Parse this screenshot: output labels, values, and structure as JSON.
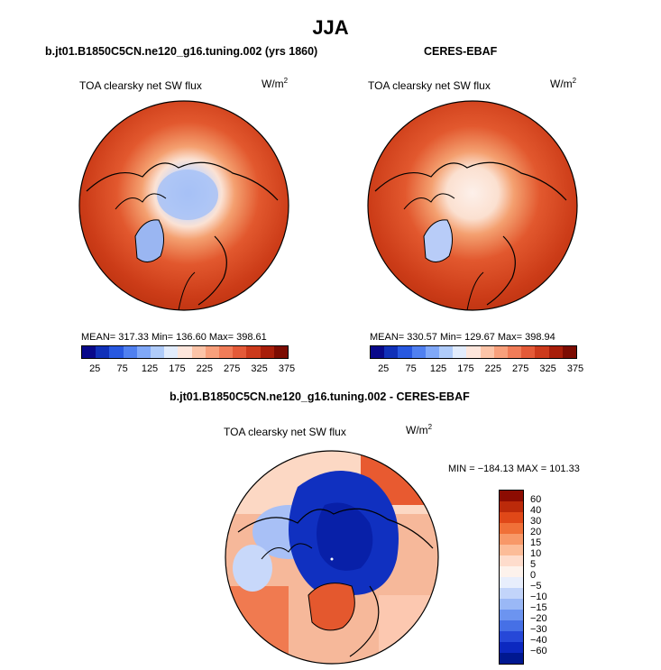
{
  "main_title": "JJA",
  "top_left": {
    "title": "b.jt01.B1850C5CN.ne120_g16.tuning.002 (yrs 1860)",
    "variable": "TOA clearsky net SW flux",
    "units": "W/m",
    "units_exp": "2",
    "stats": "MEAN= 317.33  Min= 136.60  Max= 398.61"
  },
  "top_right": {
    "title": "CERES-EBAF",
    "variable": "TOA clearsky net SW flux",
    "units": "W/m",
    "units_exp": "2",
    "stats": "MEAN= 330.57  Min= 129.67  Max= 398.94"
  },
  "abs_colorbar": {
    "colors": [
      "#08088a",
      "#1030b8",
      "#2858e0",
      "#5080f0",
      "#80a8f8",
      "#b0ccfa",
      "#e2ecfc",
      "#fde6dc",
      "#fcc4a8",
      "#f8a07c",
      "#f07c58",
      "#e45a38",
      "#cc3a1c",
      "#a81e0a",
      "#7c0c02"
    ],
    "labels": [
      "25",
      "75",
      "125",
      "175",
      "225",
      "275",
      "325",
      "375"
    ]
  },
  "diff": {
    "title": "b.jt01.B1850C5CN.ne120_g16.tuning.002 - CERES-EBAF",
    "variable": "TOA clearsky net SW flux",
    "units": "W/m",
    "units_exp": "2",
    "stats": "MIN = −184.13 MAX = 101.33"
  },
  "diff_colorbar": {
    "colors": [
      "#8c0c02",
      "#bc2a0a",
      "#e04818",
      "#f07038",
      "#f89868",
      "#fcbc98",
      "#fedccc",
      "#fdf2ec",
      "#e8eefc",
      "#c2d4fa",
      "#9ab8f6",
      "#6c94f0",
      "#4670e6",
      "#2648d8",
      "#0c28c0",
      "#001890"
    ],
    "labels": [
      "60",
      "40",
      "30",
      "20",
      "15",
      "10",
      "5",
      "0",
      "−5",
      "−10",
      "−15",
      "−20",
      "−30",
      "−40",
      "−60"
    ]
  }
}
